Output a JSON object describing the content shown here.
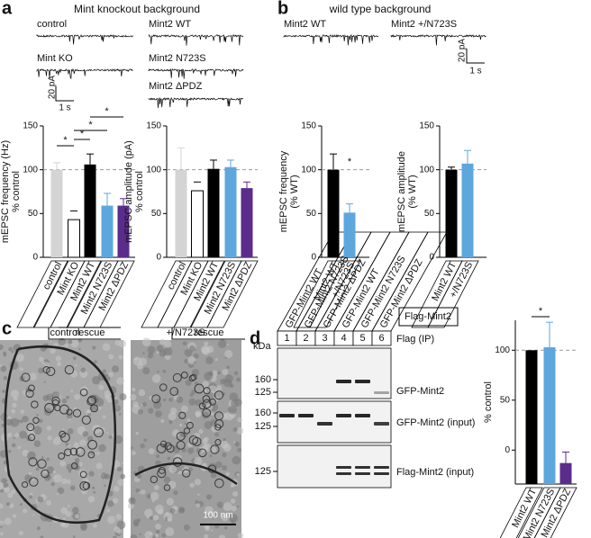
{
  "panels": {
    "a": {
      "letter": "a",
      "title": "Mint knockout background",
      "traces": [
        "control",
        "Mint KO",
        "Mint2 WT",
        "Mint2 N723S",
        "Mint2 ΔPDZ"
      ],
      "scale_y": "20 pA",
      "scale_x": "1 s",
      "group": "rescue"
    },
    "b": {
      "letter": "b",
      "title": "wild type background",
      "traces": [
        "Mint2 WT",
        "Mint2 +/N723S"
      ],
      "scale_y": "20 pA",
      "scale_x": "1 s"
    },
    "c": {
      "letter": "c",
      "images": [
        "control",
        "+/N723S"
      ],
      "scale_bar": "100 nm"
    },
    "d": {
      "letter": "d",
      "tag": "Flag-Mint2",
      "lanes": [
        "GFP-Mint2 WT",
        "GFP-Mint2 N723S",
        "GFP-Mint2 ΔPDZ",
        "GFP-Mint2 WT",
        "GFP-Mint2 N723S",
        "GFP-Mint2 ΔPDZ"
      ],
      "lane_numbers": [
        "1",
        "2",
        "3",
        "4",
        "5",
        "6"
      ],
      "unit": "kDa",
      "markers": [
        "160",
        "125",
        "160",
        "125",
        "125"
      ],
      "rows": [
        "Flag (IP)",
        "GFP-Mint2",
        "GFP-Mint2 (input)",
        "Flag-Mint2 (input)"
      ]
    }
  },
  "chart_data": [
    {
      "type": "bar",
      "ylabel": [
        "mEPSC frequency (Hz)",
        "% control"
      ],
      "categories": [
        "control",
        "Mint KO",
        "Mint2 WT",
        "Mint2 N723S",
        "Mint2 ΔPDZ"
      ],
      "values": [
        100,
        43,
        106,
        59,
        59
      ],
      "errors": [
        8,
        10,
        12,
        14,
        8
      ],
      "colors": [
        "#d4d4d4",
        "#ffffff",
        "#000000",
        "#5ea7dd",
        "#5b2c8c"
      ],
      "ylim": [
        0,
        150
      ],
      "yticks": [
        0,
        50,
        100,
        150
      ],
      "reference_line": 100,
      "annotations": [
        "*",
        "*",
        "*",
        "*"
      ]
    },
    {
      "type": "bar",
      "ylabel": [
        "mEPSC amplitude (pA)",
        "% control"
      ],
      "categories": [
        "control",
        "Mint KO",
        "Mint2 WT",
        "Mint2 N723S",
        "Mint2 ΔPDZ"
      ],
      "values": [
        100,
        76,
        101,
        103,
        79
      ],
      "errors": [
        25,
        10,
        10,
        8,
        7
      ],
      "colors": [
        "#d4d4d4",
        "#ffffff",
        "#000000",
        "#5ea7dd",
        "#5b2c8c"
      ],
      "ylim": [
        0,
        150
      ],
      "yticks": [
        0,
        50,
        100,
        150
      ],
      "reference_line": 100
    },
    {
      "type": "bar",
      "ylabel": [
        "mEPSC frequency",
        "(% WT)"
      ],
      "categories": [
        "Mint2 WT",
        "+/N723S"
      ],
      "values": [
        100,
        51
      ],
      "errors": [
        18,
        10
      ],
      "colors": [
        "#000000",
        "#5ea7dd"
      ],
      "ylim": [
        0,
        150
      ],
      "yticks": [
        0,
        50,
        100,
        150
      ],
      "reference_line": 100,
      "annotations": [
        "*"
      ]
    },
    {
      "type": "bar",
      "ylabel": [
        "mEPSC amplitude",
        "(% WT)"
      ],
      "categories": [
        "Mint2 WT",
        "+/N723S"
      ],
      "values": [
        100,
        107
      ],
      "errors": [
        3,
        15
      ],
      "colors": [
        "#000000",
        "#5ea7dd"
      ],
      "ylim": [
        0,
        150
      ],
      "yticks": [
        0,
        50,
        100,
        150
      ],
      "reference_line": 100
    },
    {
      "type": "bar",
      "ylabel": [
        "% control"
      ],
      "categories": [
        "Mint2 WT",
        "Mint2 N723S",
        "Mint2 ΔPDZ"
      ],
      "values": [
        100,
        103,
        -13
      ],
      "errors": [
        0,
        25,
        11
      ],
      "colors": [
        "#000000",
        "#5ea7dd",
        "#5b2c8c"
      ],
      "ylim": [
        -34,
        130
      ],
      "yticks": [
        0,
        50,
        100
      ],
      "reference_line": 100,
      "annotations": [
        "*"
      ]
    }
  ]
}
